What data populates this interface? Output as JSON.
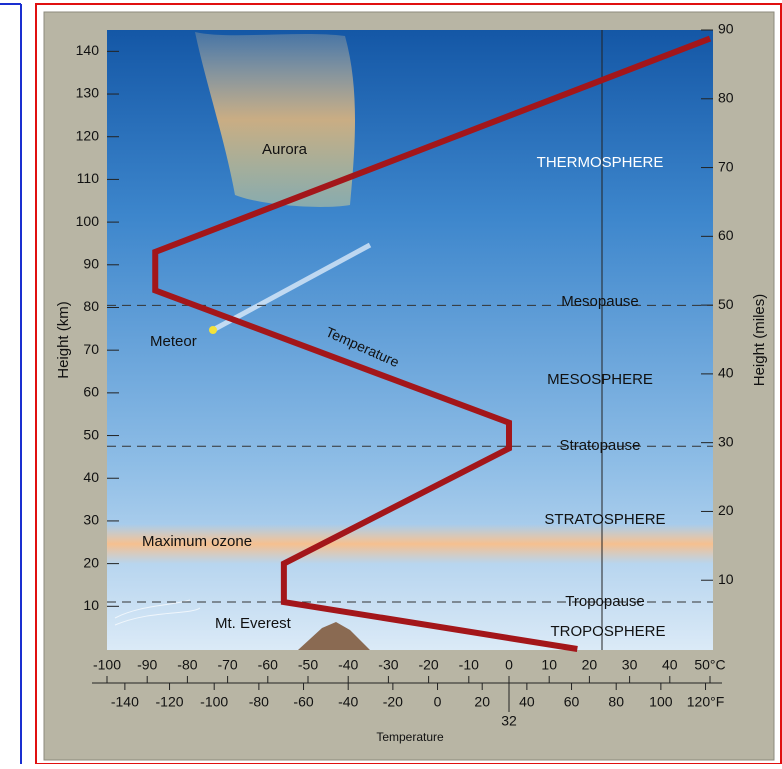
{
  "chart_data": {
    "type": "line",
    "xlabel": "Temperature",
    "ylabel": "Height (km)",
    "y2label": "Height (miles)",
    "series": [
      {
        "name": "Temperature",
        "color": "#a3161a",
        "x": [
          17,
          -56,
          -56,
          0,
          0,
          -88,
          -88,
          50
        ],
        "values": [
          0,
          11,
          20,
          47,
          53,
          84,
          93,
          143
        ]
      }
    ],
    "xlim": [
      -100,
      50
    ],
    "xticks": [
      -100,
      -90,
      -80,
      -70,
      -60,
      -50,
      -40,
      -30,
      -20,
      -10,
      0,
      10,
      20,
      30,
      40,
      {
        "value": 50,
        "label": "50°C"
      }
    ],
    "x2lim": [
      -148,
      122
    ],
    "x2ticks": [
      -140,
      -120,
      -100,
      -80,
      -60,
      -40,
      -20,
      0,
      20,
      32,
      40,
      60,
      80,
      100,
      {
        "value": 120,
        "label": "120°F"
      }
    ],
    "ylim": [
      0,
      145
    ],
    "yticks": [
      10,
      20,
      30,
      40,
      50,
      60,
      70,
      80,
      90,
      100,
      110,
      120,
      130,
      140
    ],
    "y2lim": [
      0,
      90
    ],
    "y2ticks": [
      10,
      20,
      30,
      40,
      50,
      60,
      70,
      80,
      90
    ],
    "hlines": [
      80.5,
      47.5,
      11
    ],
    "annotations": [
      "Aurora",
      "THERMOSPHERE",
      "Mesopause",
      "Meteor",
      "MESOSPHERE",
      "Stratopause",
      "STRATOSPHERE",
      "Maximum ozone",
      "Tropopause",
      "Mt. Everest",
      "TROPOSPHERE"
    ]
  }
}
